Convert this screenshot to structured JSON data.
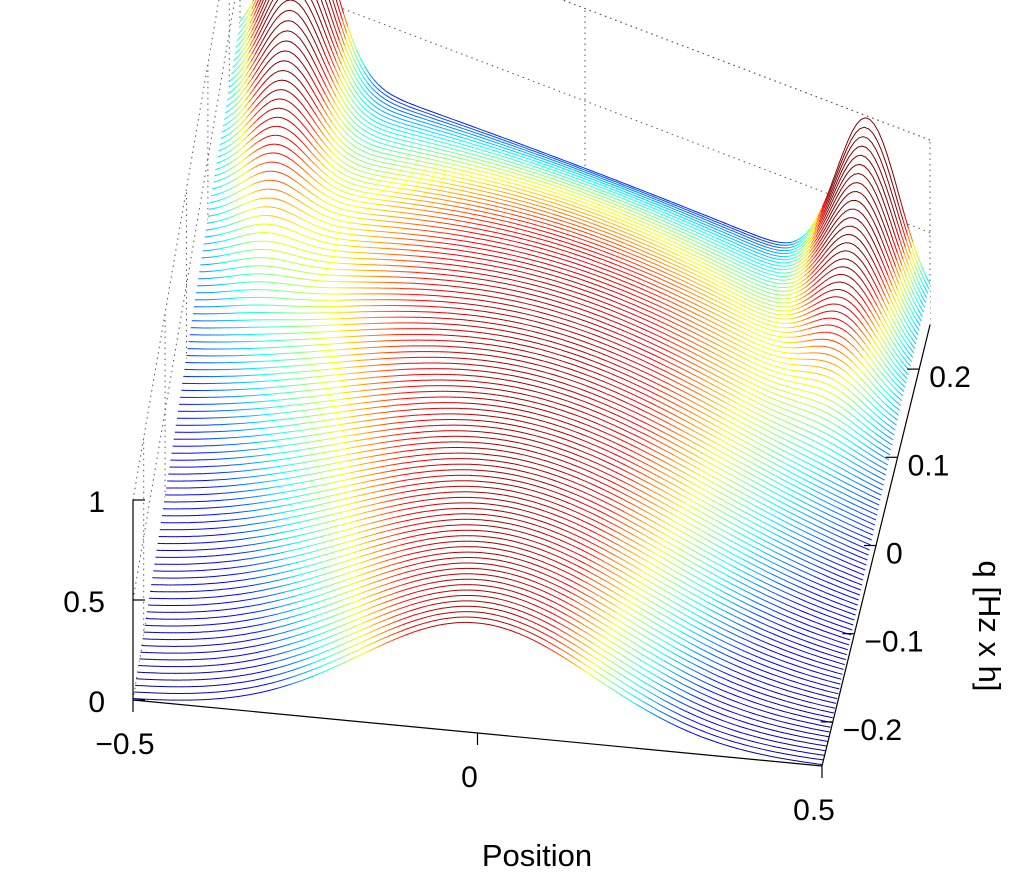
{
  "chart_data": {
    "type": "waterfall-3d",
    "title": "",
    "xlabel": "Position",
    "ylabel": "q [Hz x h]",
    "zlabel": "",
    "x_range": [
      -0.5,
      0.5
    ],
    "y_range": [
      -0.25,
      0.25
    ],
    "z_range": [
      0,
      1
    ],
    "x_ticks": [
      {
        "value": -0.5,
        "label": "−0.5"
      },
      {
        "value": 0,
        "label": "0"
      },
      {
        "value": 0.5,
        "label": "0.5"
      }
    ],
    "y_ticks": [
      {
        "value": -0.2,
        "label": "−0.2"
      },
      {
        "value": -0.1,
        "label": "−0.1"
      },
      {
        "value": 0,
        "label": "0"
      },
      {
        "value": 0.1,
        "label": "0.1"
      },
      {
        "value": 0.2,
        "label": "0.2"
      }
    ],
    "z_ticks": [
      {
        "value": 0,
        "label": "0"
      },
      {
        "value": 0.5,
        "label": "0.5"
      },
      {
        "value": 1,
        "label": "1"
      }
    ],
    "num_curves": 101,
    "colormap": [
      "#00008f",
      "#0000ff",
      "#00ffff",
      "#ffff00",
      "#ff0000",
      "#800000"
    ],
    "grid": true,
    "profile": {
      "low_q": {
        "shape": "single gaussian",
        "center": 0.0,
        "width": 0.17,
        "peak": 0.55
      },
      "mid_q": {
        "shape": "broad dome",
        "center": 0.0,
        "width": 0.36,
        "peak": 0.56
      },
      "high_q": {
        "shape": "two edge peaks",
        "centers": [
          -0.41,
          0.41
        ],
        "width": 0.045,
        "peak": 0.88,
        "floor": 0.08
      }
    }
  }
}
